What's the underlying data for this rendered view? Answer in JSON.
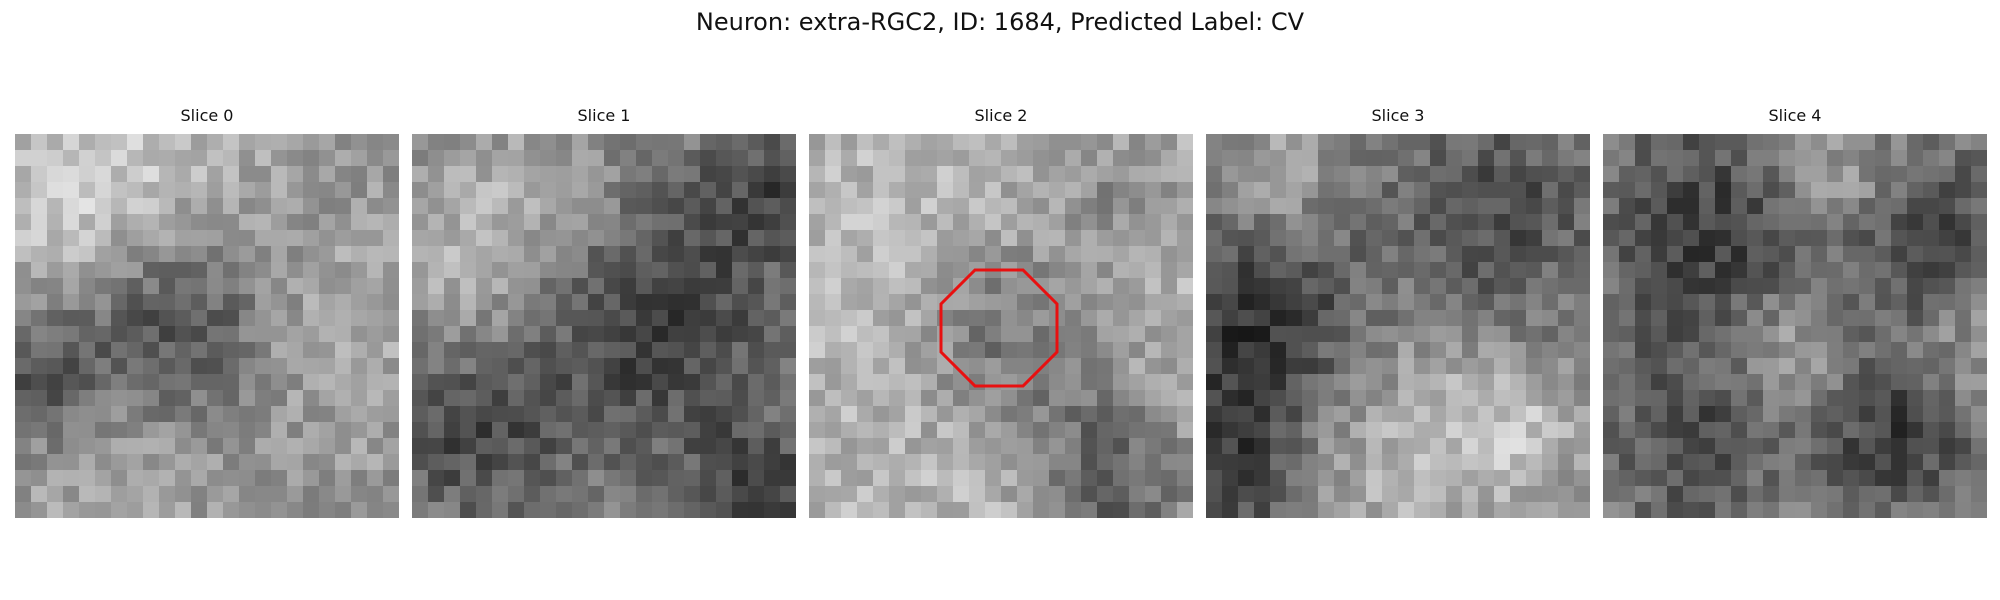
{
  "figure": {
    "title": "Neuron: extra-RGC2, ID: 1684, Predicted Label: CV"
  },
  "panels": [
    {
      "title": "Slice 0"
    },
    {
      "title": "Slice 1"
    },
    {
      "title": "Slice 2",
      "has_outline": true
    },
    {
      "title": "Slice 3"
    },
    {
      "title": "Slice 4"
    }
  ],
  "outline_color": "#e81010"
}
